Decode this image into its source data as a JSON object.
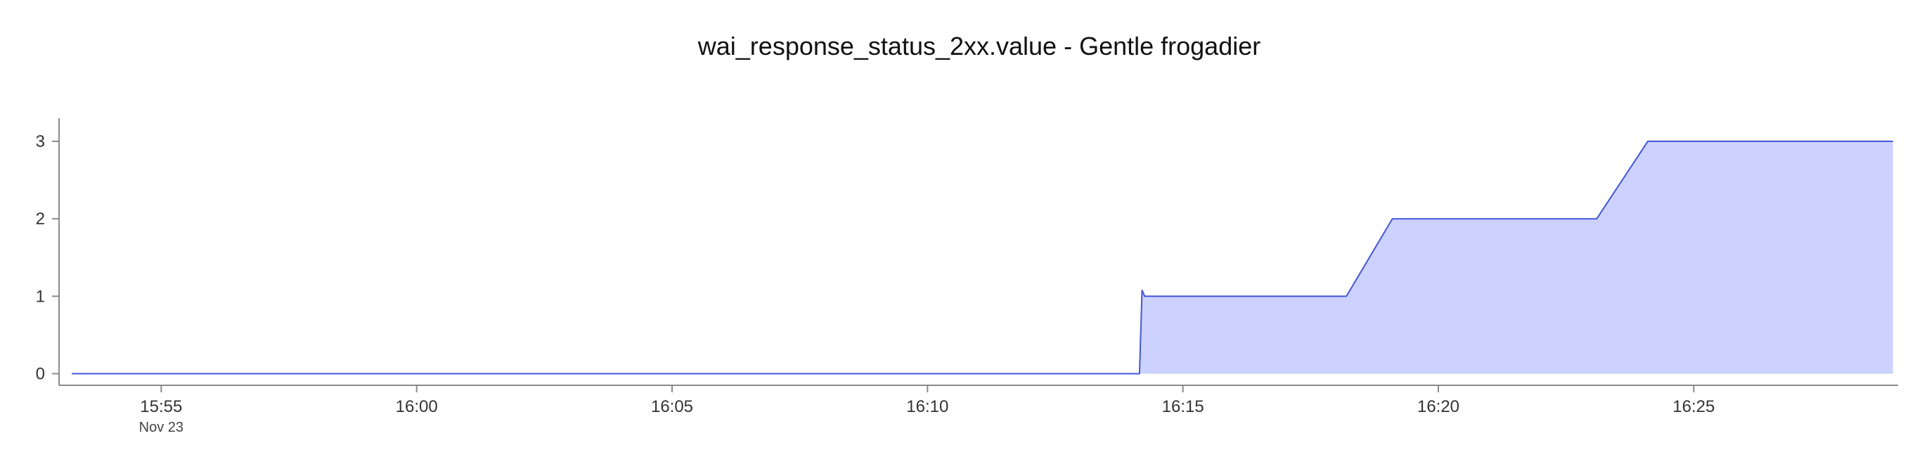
{
  "chart_data": {
    "type": "area",
    "title": "wai_response_status_2xx.value - Gentle frogadier",
    "xlabel": "",
    "ylabel": "",
    "x_domain": [
      "15:53:20",
      "16:29:00"
    ],
    "xlim_minutes": [
      953.0,
      989.0
    ],
    "ylim": [
      -0.15,
      3.3
    ],
    "y_ticks": [
      0,
      1,
      2,
      3
    ],
    "x_ticks": [
      {
        "label": "15:55",
        "minute": 955,
        "sublabel": "Nov 23"
      },
      {
        "label": "16:00",
        "minute": 960
      },
      {
        "label": "16:05",
        "minute": 965
      },
      {
        "label": "16:10",
        "minute": 970
      },
      {
        "label": "16:15",
        "minute": 975
      },
      {
        "label": "16:20",
        "minute": 980
      },
      {
        "label": "16:25",
        "minute": 985
      }
    ],
    "series": [
      {
        "name": "wai_response_status_2xx.value",
        "color": "#4455d9",
        "fill_color": "#ccd2fd",
        "points": [
          {
            "minute": 953.25,
            "value": 0
          },
          {
            "minute": 974.15,
            "value": 0
          },
          {
            "minute": 974.2,
            "value": 1.08
          },
          {
            "minute": 974.25,
            "value": 1
          },
          {
            "minute": 978.2,
            "value": 1
          },
          {
            "minute": 979.1,
            "value": 2
          },
          {
            "minute": 983.1,
            "value": 2
          },
          {
            "minute": 984.1,
            "value": 3
          },
          {
            "minute": 988.9,
            "value": 3
          }
        ]
      }
    ],
    "legend": "none",
    "grid": false
  }
}
